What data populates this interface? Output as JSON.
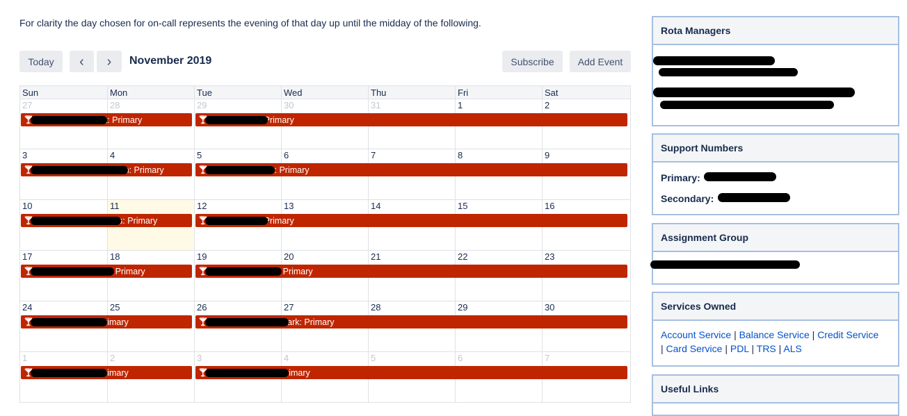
{
  "intro": "For clarity the day chosen for on-call represents the evening of that day up until the midday of the following.",
  "toolbar": {
    "today_label": "Today",
    "prev_icon": "‹",
    "next_icon": "›",
    "month_title": "November 2019",
    "subscribe_label": "Subscribe",
    "add_event_label": "Add Event"
  },
  "weekdays": [
    "Sun",
    "Mon",
    "Tue",
    "Wed",
    "Thu",
    "Fri",
    "Sat"
  ],
  "weeks": [
    {
      "days": [
        {
          "n": "27",
          "other": true
        },
        {
          "n": "28",
          "other": true
        },
        {
          "n": "29",
          "other": true
        },
        {
          "n": "30",
          "other": true
        },
        {
          "n": "31",
          "other": true
        },
        {
          "n": "1"
        },
        {
          "n": "2"
        }
      ],
      "events": [
        {
          "start": 0,
          "span": 2,
          "label": "Primary",
          "shown": "ck: Primary"
        },
        {
          "start": 2,
          "span": 5,
          "label": "Primary",
          "shown": ": Primary"
        }
      ]
    },
    {
      "days": [
        {
          "n": "3"
        },
        {
          "n": "4"
        },
        {
          "n": "5"
        },
        {
          "n": "6"
        },
        {
          "n": "7"
        },
        {
          "n": "8"
        },
        {
          "n": "9"
        }
      ],
      "events": [
        {
          "start": 0,
          "span": 2,
          "label": "Primary",
          "shown": "an: Primary"
        },
        {
          "start": 2,
          "span": 5,
          "label": "Primary",
          "shown": "lis: Primary"
        }
      ]
    },
    {
      "days": [
        {
          "n": "10"
        },
        {
          "n": "11",
          "today": true
        },
        {
          "n": "12"
        },
        {
          "n": "13"
        },
        {
          "n": "14"
        },
        {
          "n": "15"
        },
        {
          "n": "16"
        }
      ],
      "events": [
        {
          "start": 0,
          "span": 2,
          "label": "Primary",
          "shown": "llis: Primary"
        },
        {
          "start": 2,
          "span": 5,
          "label": "Primary",
          "shown": ": Primary"
        }
      ]
    },
    {
      "days": [
        {
          "n": "17"
        },
        {
          "n": "18"
        },
        {
          "n": "19"
        },
        {
          "n": "20"
        },
        {
          "n": "21"
        },
        {
          "n": "22"
        },
        {
          "n": "23"
        }
      ],
      "events": [
        {
          "start": 0,
          "span": 2,
          "label": "Primary",
          "shown": "n: Primary"
        },
        {
          "start": 2,
          "span": 5,
          "label": "Primary",
          "shown": "n: Primary"
        }
      ]
    },
    {
      "days": [
        {
          "n": "24"
        },
        {
          "n": "25"
        },
        {
          "n": "26"
        },
        {
          "n": "27"
        },
        {
          "n": "28"
        },
        {
          "n": "29"
        },
        {
          "n": "30"
        }
      ],
      "events": [
        {
          "start": 0,
          "span": 2,
          "label": "Primary",
          "shown": "Primary"
        },
        {
          "start": 2,
          "span": 5,
          "label": "Primary",
          "shown": "Mark: Primary"
        }
      ]
    },
    {
      "days": [
        {
          "n": "1",
          "other": true
        },
        {
          "n": "2",
          "other": true
        },
        {
          "n": "3",
          "other": true
        },
        {
          "n": "4",
          "other": true
        },
        {
          "n": "5",
          "other": true
        },
        {
          "n": "6",
          "other": true
        },
        {
          "n": "7",
          "other": true
        }
      ],
      "events": [
        {
          "start": 0,
          "span": 2,
          "label": "Primary",
          "shown": "Primary"
        },
        {
          "start": 2,
          "span": 5,
          "label": "Primary",
          "shown": "Primary"
        }
      ]
    }
  ],
  "sidebar": {
    "rota": {
      "title": "Rota Managers"
    },
    "support": {
      "title": "Support Numbers",
      "primary_label": "Primary:",
      "secondary_label": "Secondary:"
    },
    "assignment": {
      "title": "Assignment Group"
    },
    "services": {
      "title": "Services Owned",
      "items": [
        "Account Service",
        "Balance Service",
        "Credit Service",
        "Card Service",
        "PDL",
        "TRS",
        "ALS"
      ]
    },
    "links": {
      "title": "Useful Links"
    }
  },
  "colors": {
    "event": "#bf2600",
    "accent": "#0052cc",
    "panel_border": "#a5bfe0",
    "today": "#fffae6"
  },
  "icons": {
    "event": "cocktail-icon",
    "prev": "chevron-left-icon",
    "next": "chevron-right-icon"
  }
}
